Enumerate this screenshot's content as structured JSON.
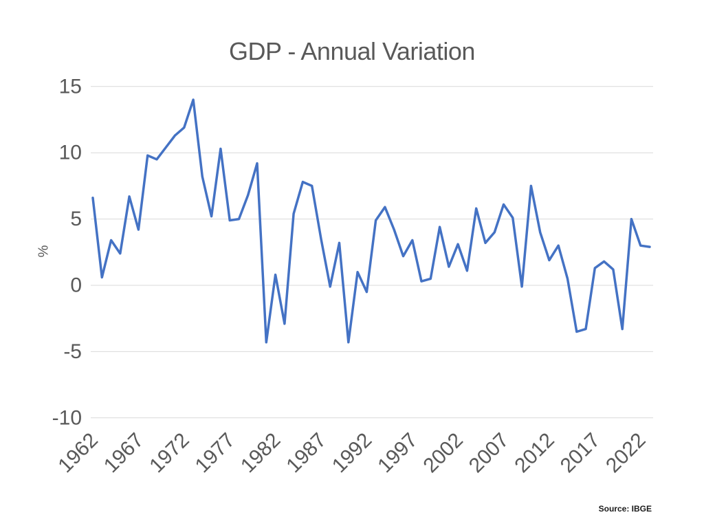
{
  "slide": {
    "title": "GDP - Annual Variation",
    "source_note": "Source: IBGE"
  },
  "colors": {
    "line": "#4472C4",
    "gridline": "#D9D9D9",
    "tick_text": "#595959",
    "title_text": "#595959",
    "source_text": "#1A1A1A",
    "background": "#FFFFFF"
  },
  "chart_data": {
    "type": "line",
    "title": "GDP - Annual Variation",
    "xlabel": "",
    "ylabel": "%",
    "ylim": [
      -10,
      15
    ],
    "grid": true,
    "legend_position": "none",
    "x": [
      1962,
      1963,
      1964,
      1965,
      1966,
      1967,
      1968,
      1969,
      1970,
      1971,
      1972,
      1973,
      1974,
      1975,
      1976,
      1977,
      1978,
      1979,
      1980,
      1981,
      1982,
      1983,
      1984,
      1985,
      1986,
      1987,
      1988,
      1989,
      1990,
      1991,
      1992,
      1993,
      1994,
      1995,
      1996,
      1997,
      1998,
      1999,
      2000,
      2001,
      2002,
      2003,
      2004,
      2005,
      2006,
      2007,
      2008,
      2009,
      2010,
      2011,
      2012,
      2013,
      2014,
      2015,
      2016,
      2017,
      2018,
      2019,
      2020,
      2021,
      2022,
      2023
    ],
    "y": [
      6.6,
      0.6,
      3.4,
      2.4,
      6.7,
      4.2,
      9.8,
      9.5,
      10.4,
      11.3,
      11.9,
      14.0,
      8.2,
      5.2,
      10.3,
      4.9,
      5.0,
      6.8,
      9.2,
      -4.3,
      0.8,
      -2.9,
      5.4,
      7.8,
      7.5,
      3.5,
      -0.1,
      3.2,
      -4.3,
      1.0,
      -0.5,
      4.9,
      5.9,
      4.2,
      2.2,
      3.4,
      0.3,
      0.5,
      4.4,
      1.4,
      3.1,
      1.1,
      5.8,
      3.2,
      4.0,
      6.1,
      5.1,
      -0.1,
      7.5,
      4.0,
      1.9,
      3.0,
      0.5,
      -3.5,
      -3.3,
      1.3,
      1.8,
      1.2,
      -3.3,
      5.0,
      3.0,
      2.9
    ],
    "y_ticks": [
      15,
      10,
      5,
      0,
      -5,
      -10
    ],
    "x_tick_labels": [
      1962,
      1967,
      1972,
      1977,
      1982,
      1987,
      1992,
      1997,
      2002,
      2007,
      2012,
      2017,
      2022
    ]
  }
}
